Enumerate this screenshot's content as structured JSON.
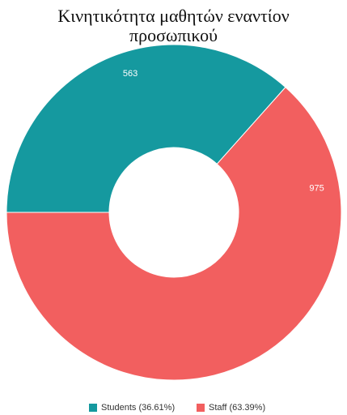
{
  "chart_data": {
    "type": "donut",
    "title": "Κινητικότητα μαθητών εναντίον προσωπικού",
    "categories": [
      "Students (36.61%)",
      "Staff (63.39%)"
    ],
    "values": [
      563,
      975
    ],
    "colors": [
      "#15999f",
      "#f25f5f"
    ],
    "legend": "bottom"
  }
}
